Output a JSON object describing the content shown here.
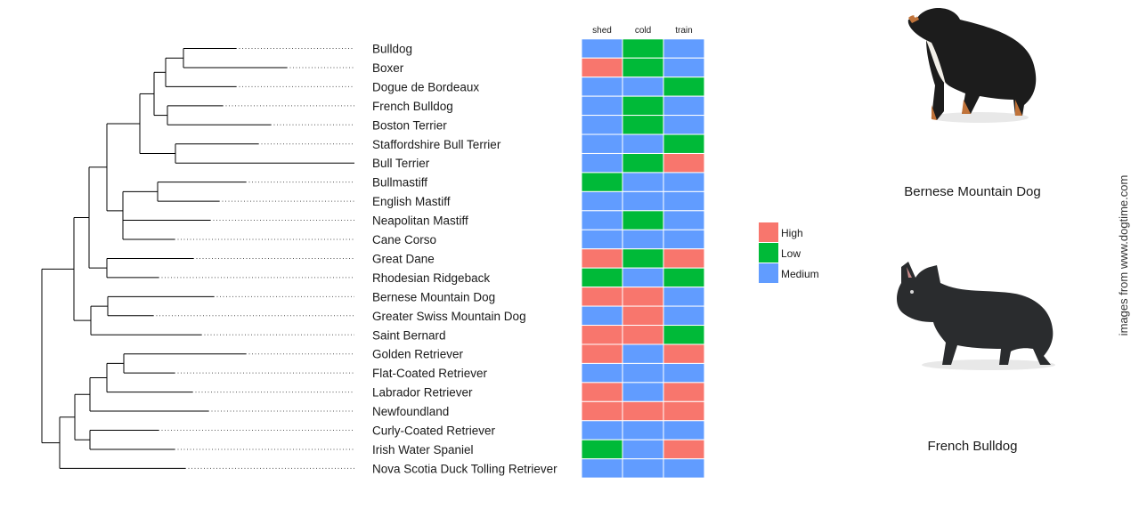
{
  "chart_data": {
    "type": "heatmap",
    "title": "",
    "rows": [
      "Bulldog",
      "Boxer",
      "Dogue de Bordeaux",
      "French Bulldog",
      "Boston Terrier",
      "Staffordshire Bull Terrier",
      "Bull Terrier",
      "Bullmastiff",
      "English Mastiff",
      "Neapolitan Mastiff",
      "Cane Corso",
      "Great Dane",
      "Rhodesian Ridgeback",
      "Bernese Mountain Dog",
      "Greater Swiss Mountain Dog",
      "Saint Bernard",
      "Golden Retriever",
      "Flat-Coated Retriever",
      "Labrador Retriever",
      "Newfoundland",
      "Curly-Coated Retriever",
      "Irish Water Spaniel",
      "Nova Scotia Duck Tolling Retriever"
    ],
    "columns": [
      "shed",
      "cold",
      "train"
    ],
    "values": [
      [
        "Medium",
        "Low",
        "Medium"
      ],
      [
        "High",
        "Low",
        "Medium"
      ],
      [
        "Medium",
        "Medium",
        "Low"
      ],
      [
        "Medium",
        "Low",
        "Medium"
      ],
      [
        "Medium",
        "Low",
        "Medium"
      ],
      [
        "Medium",
        "Medium",
        "Low"
      ],
      [
        "Medium",
        "Low",
        "High"
      ],
      [
        "Low",
        "Medium",
        "Medium"
      ],
      [
        "Medium",
        "Medium",
        "Medium"
      ],
      [
        "Medium",
        "Low",
        "Medium"
      ],
      [
        "Medium",
        "Medium",
        "Medium"
      ],
      [
        "High",
        "Low",
        "High"
      ],
      [
        "Low",
        "Medium",
        "Low"
      ],
      [
        "High",
        "High",
        "Medium"
      ],
      [
        "Medium",
        "High",
        "Medium"
      ],
      [
        "High",
        "High",
        "Low"
      ],
      [
        "High",
        "Medium",
        "High"
      ],
      [
        "Medium",
        "Medium",
        "Medium"
      ],
      [
        "High",
        "Medium",
        "High"
      ],
      [
        "High",
        "High",
        "High"
      ],
      [
        "Medium",
        "Medium",
        "Medium"
      ],
      [
        "Low",
        "Medium",
        "High"
      ],
      [
        "Medium",
        "Medium",
        "Medium"
      ]
    ],
    "legend": {
      "placement": "right",
      "entries": [
        {
          "label": "High",
          "color": "#F8766D"
        },
        {
          "label": "Low",
          "color": "#00BA38"
        },
        {
          "label": "Medium",
          "color": "#619CFF"
        }
      ]
    },
    "dendrogram": {
      "description": "hierarchical clustering tree of breeds (left side)"
    }
  },
  "images": [
    {
      "caption": "Bernese Mountain Dog",
      "icon": "bernese-mountain-dog-photo"
    },
    {
      "caption": "French Bulldog",
      "icon": "french-bulldog-photo"
    }
  ],
  "credit": "images from www.dogtime.com"
}
